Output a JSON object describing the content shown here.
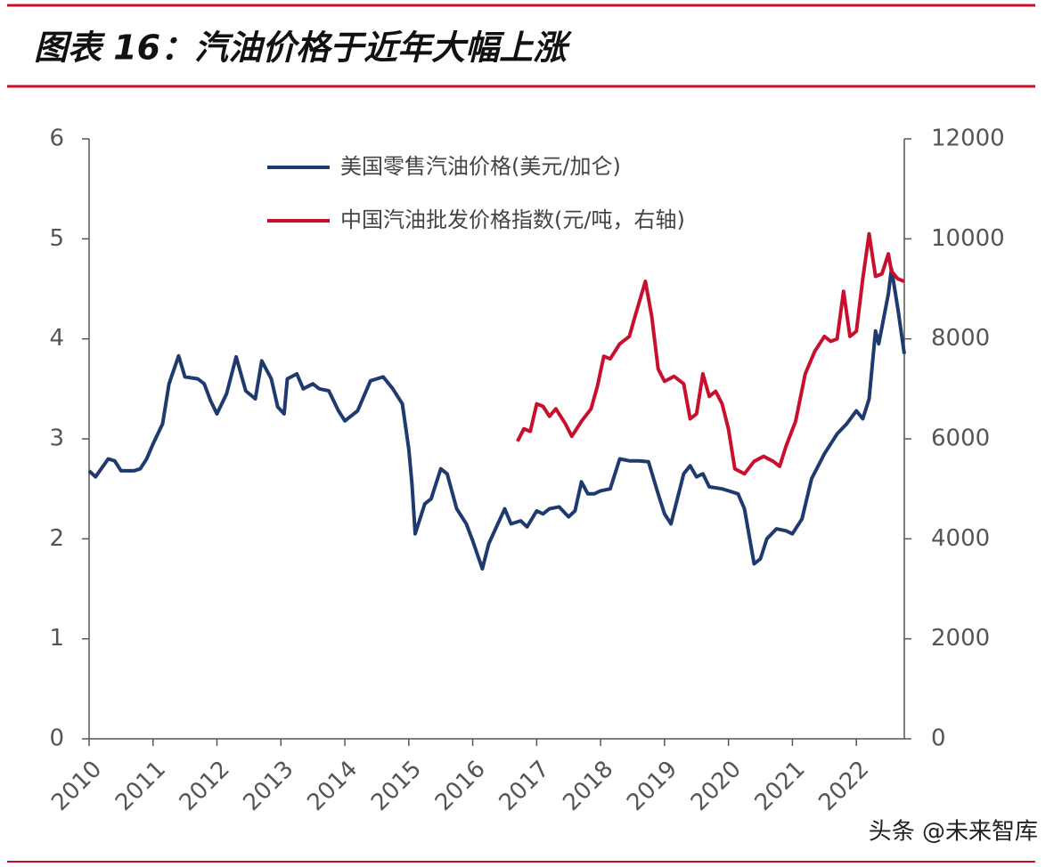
{
  "chart_data": {
    "type": "line",
    "title": "图表 16：汽油价格于近年大幅上涨",
    "watermark": "头条 @未来智库",
    "xlim": [
      2010,
      2022.75
    ],
    "xticks": [
      2010,
      2011,
      2012,
      2013,
      2014,
      2015,
      2016,
      2017,
      2018,
      2019,
      2020,
      2021,
      2022
    ],
    "ylim": [
      0,
      6
    ],
    "yticks": [
      0,
      1,
      2,
      3,
      4,
      5,
      6
    ],
    "y2lim": [
      0,
      12000
    ],
    "y2ticks": [
      0,
      2000,
      4000,
      6000,
      8000,
      10000,
      12000
    ],
    "legend": "upper left",
    "series": [
      {
        "name": "美国零售汽油价格(美元/加仑)",
        "color": "#1f3a6e",
        "x": [
          2010.0,
          2010.1,
          2010.3,
          2010.4,
          2010.5,
          2010.7,
          2010.8,
          2010.9,
          2011.0,
          2011.15,
          2011.25,
          2011.4,
          2011.5,
          2011.7,
          2011.8,
          2011.9,
          2012.0,
          2012.15,
          2012.3,
          2012.45,
          2012.6,
          2012.7,
          2012.85,
          2012.95,
          2013.05,
          2013.1,
          2013.25,
          2013.35,
          2013.5,
          2013.6,
          2013.75,
          2013.9,
          2014.0,
          2014.2,
          2014.4,
          2014.6,
          2014.75,
          2014.9,
          2015.0,
          2015.05,
          2015.1,
          2015.25,
          2015.35,
          2015.5,
          2015.6,
          2015.75,
          2015.9,
          2016.0,
          2016.15,
          2016.25,
          2016.5,
          2016.6,
          2016.75,
          2016.85,
          2017.0,
          2017.1,
          2017.2,
          2017.35,
          2017.5,
          2017.6,
          2017.7,
          2017.8,
          2017.9,
          2018.0,
          2018.15,
          2018.3,
          2018.45,
          2018.6,
          2018.75,
          2018.9,
          2019.0,
          2019.1,
          2019.3,
          2019.4,
          2019.5,
          2019.6,
          2019.7,
          2019.9,
          2020.0,
          2020.15,
          2020.25,
          2020.4,
          2020.5,
          2020.6,
          2020.75,
          2020.9,
          2021.0,
          2021.15,
          2021.3,
          2021.5,
          2021.7,
          2021.85,
          2022.0,
          2022.1,
          2022.2,
          2022.3,
          2022.35,
          2022.5,
          2022.55,
          2022.65,
          2022.75
        ],
        "values": [
          2.68,
          2.62,
          2.8,
          2.78,
          2.68,
          2.68,
          2.7,
          2.8,
          2.95,
          3.15,
          3.55,
          3.83,
          3.62,
          3.6,
          3.55,
          3.38,
          3.25,
          3.45,
          3.82,
          3.48,
          3.4,
          3.78,
          3.6,
          3.32,
          3.25,
          3.6,
          3.65,
          3.5,
          3.55,
          3.5,
          3.48,
          3.28,
          3.18,
          3.28,
          3.58,
          3.62,
          3.5,
          3.35,
          2.9,
          2.55,
          2.05,
          2.35,
          2.4,
          2.7,
          2.65,
          2.3,
          2.15,
          1.98,
          1.7,
          1.95,
          2.3,
          2.15,
          2.18,
          2.12,
          2.28,
          2.25,
          2.3,
          2.32,
          2.22,
          2.28,
          2.57,
          2.45,
          2.45,
          2.48,
          2.5,
          2.8,
          2.78,
          2.78,
          2.77,
          2.45,
          2.25,
          2.15,
          2.65,
          2.73,
          2.62,
          2.65,
          2.52,
          2.5,
          2.48,
          2.45,
          2.3,
          1.75,
          1.8,
          2.0,
          2.1,
          2.08,
          2.05,
          2.2,
          2.6,
          2.85,
          3.05,
          3.15,
          3.28,
          3.2,
          3.4,
          4.08,
          3.95,
          4.45,
          4.7,
          4.3,
          3.85
        ]
      },
      {
        "name": "中国汽油批发价格指数(元/吨，右轴)",
        "color": "#c8102e",
        "axis": "y2",
        "x": [
          2016.7,
          2016.8,
          2016.9,
          2017.0,
          2017.1,
          2017.2,
          2017.3,
          2017.45,
          2017.55,
          2017.7,
          2017.85,
          2017.95,
          2018.05,
          2018.15,
          2018.3,
          2018.45,
          2018.55,
          2018.7,
          2018.8,
          2018.9,
          2019.0,
          2019.15,
          2019.3,
          2019.4,
          2019.5,
          2019.6,
          2019.7,
          2019.8,
          2019.9,
          2020.0,
          2020.1,
          2020.25,
          2020.4,
          2020.55,
          2020.7,
          2020.8,
          2020.9,
          2021.05,
          2021.2,
          2021.35,
          2021.5,
          2021.6,
          2021.7,
          2021.8,
          2021.9,
          2022.0,
          2022.1,
          2022.2,
          2022.3,
          2022.4,
          2022.5,
          2022.55,
          2022.65,
          2022.75
        ],
        "values": [
          5950,
          6200,
          6150,
          6700,
          6650,
          6450,
          6600,
          6300,
          6050,
          6350,
          6600,
          7050,
          7650,
          7600,
          7900,
          8050,
          8500,
          9150,
          8450,
          7400,
          7150,
          7250,
          7100,
          6400,
          6500,
          7300,
          6850,
          6950,
          6700,
          6200,
          5400,
          5300,
          5550,
          5650,
          5550,
          5450,
          5850,
          6350,
          7300,
          7750,
          8050,
          7950,
          8000,
          8950,
          8050,
          8150,
          9200,
          10100,
          9250,
          9300,
          9700,
          9350,
          9200,
          9150
        ]
      }
    ]
  }
}
